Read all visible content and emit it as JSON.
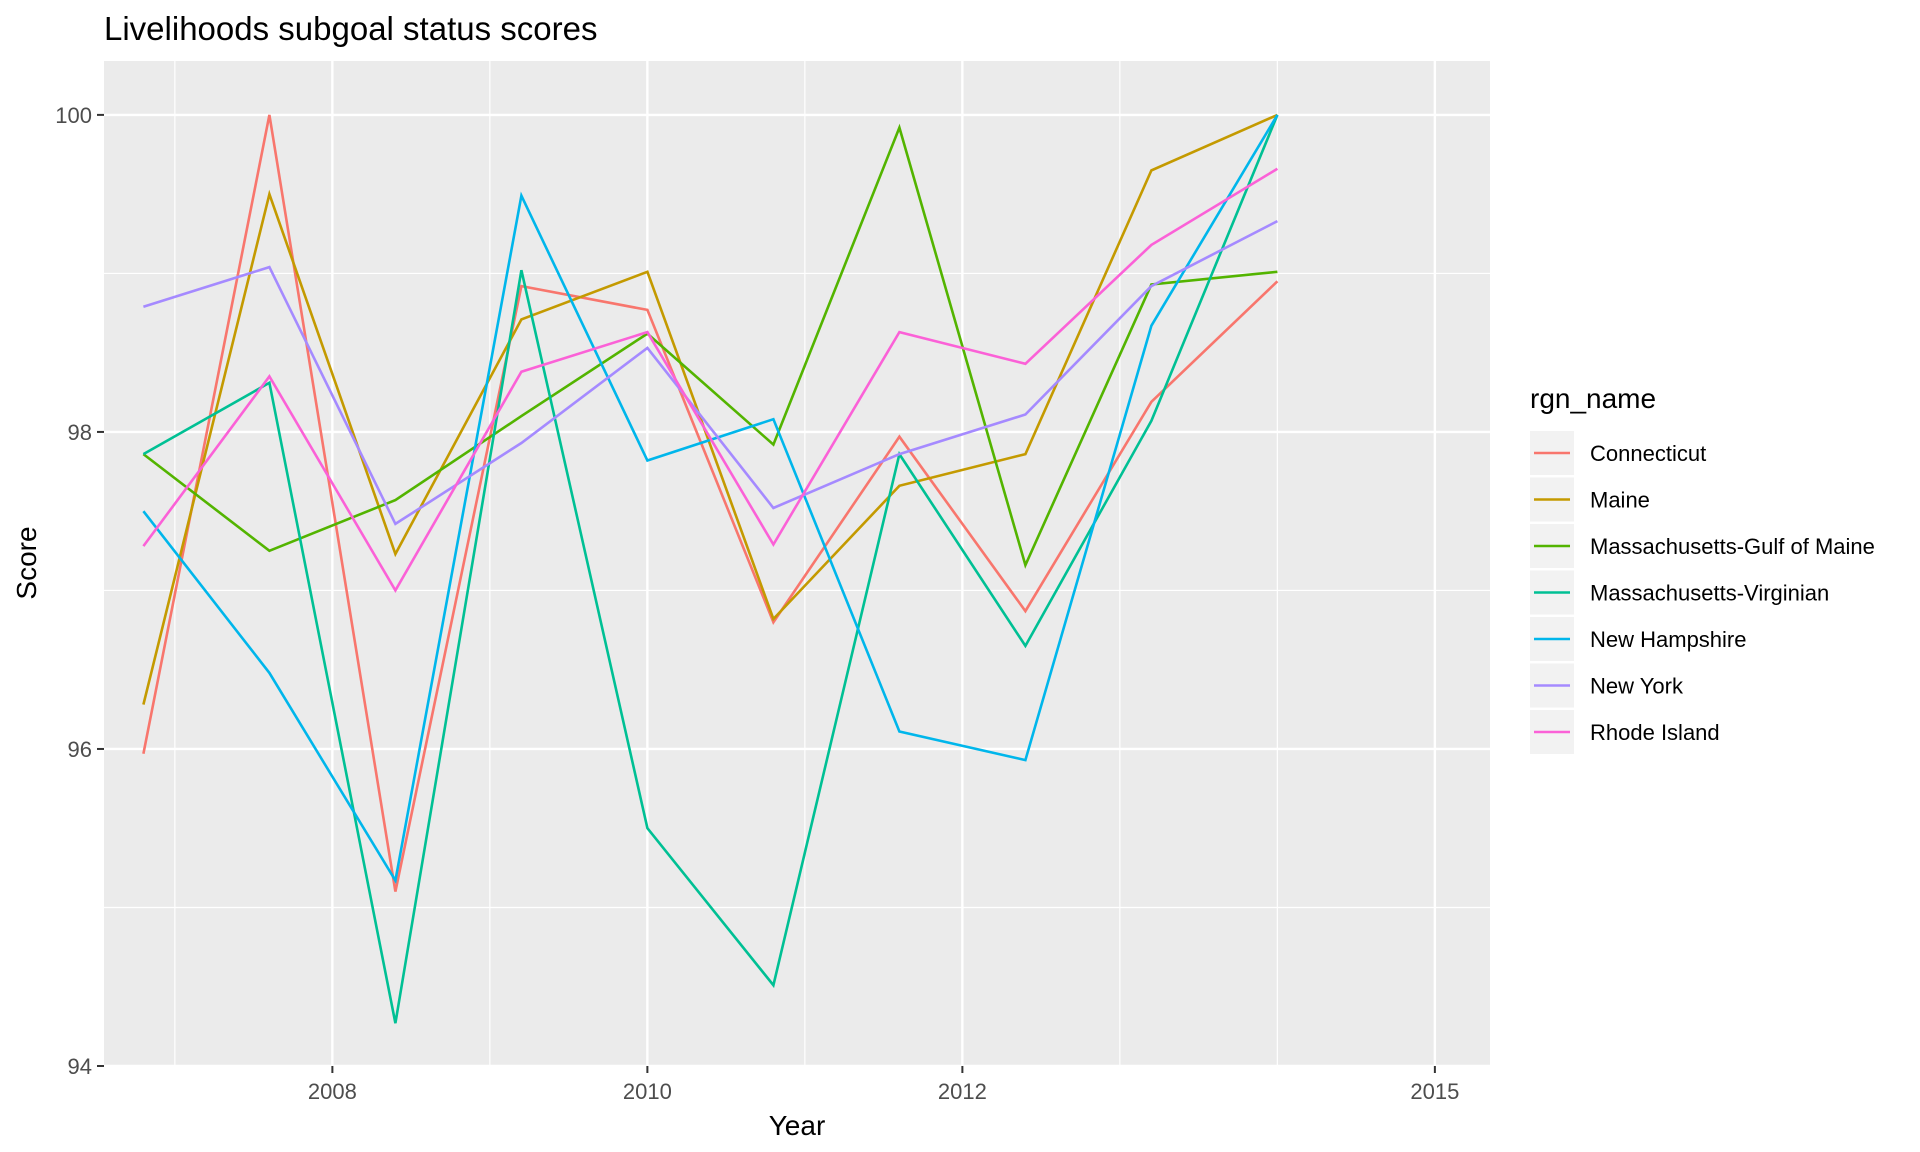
{
  "chart_data": {
    "type": "line",
    "title": "Livelihoods subgoal status scores",
    "xlabel": "Year",
    "ylabel": "Score",
    "xlim": [
      2006.55,
      2015.35
    ],
    "ylim": [
      94,
      100.34
    ],
    "x_ticks": [
      2008,
      2010,
      2012,
      2015
    ],
    "x_minor_ticks": [
      2007,
      2009,
      2011,
      2013,
      2014
    ],
    "y_ticks": [
      94,
      96,
      98,
      100
    ],
    "y_minor_ticks": [
      95,
      97,
      99
    ],
    "grid": true,
    "panel_background": "#ebebeb",
    "legend": {
      "title": "rgn_name",
      "position": "right"
    },
    "x": [
      2006.8,
      2007.6,
      2008.4,
      2009.2,
      2010.0,
      2010.8,
      2011.6,
      2012.4,
      2013.2,
      2014.0
    ],
    "series": [
      {
        "name": "Connecticut",
        "color": "#F8766D",
        "values": [
          95.97,
          100.0,
          95.1,
          98.92,
          98.77,
          96.8,
          97.97,
          96.87,
          98.19,
          98.95
        ]
      },
      {
        "name": "Maine",
        "color": "#C49A00",
        "values": [
          96.28,
          99.5,
          97.23,
          98.71,
          99.01,
          96.82,
          97.66,
          97.86,
          99.65,
          100.0
        ]
      },
      {
        "name": "Massachusetts-Gulf of Maine",
        "color": "#53B400",
        "values": [
          97.86,
          97.25,
          97.57,
          98.1,
          98.62,
          97.92,
          99.92,
          97.16,
          98.93,
          99.01
        ]
      },
      {
        "name": "Massachusetts-Virginian",
        "color": "#00C094",
        "values": [
          97.86,
          98.31,
          94.27,
          99.02,
          95.5,
          94.51,
          97.86,
          96.65,
          98.07,
          100.0
        ]
      },
      {
        "name": "New Hampshire",
        "color": "#00B6EB",
        "values": [
          97.5,
          96.48,
          95.17,
          99.49,
          97.82,
          98.08,
          96.11,
          95.93,
          98.67,
          100.0
        ]
      },
      {
        "name": "New York",
        "color": "#A58AFF",
        "values": [
          98.79,
          99.04,
          97.42,
          97.93,
          98.53,
          97.52,
          97.86,
          98.11,
          98.92,
          99.33
        ]
      },
      {
        "name": "Rhode Island",
        "color": "#FB61D7",
        "values": [
          97.28,
          98.35,
          97.0,
          98.38,
          98.63,
          97.29,
          98.63,
          98.43,
          99.18,
          99.66
        ]
      }
    ]
  }
}
